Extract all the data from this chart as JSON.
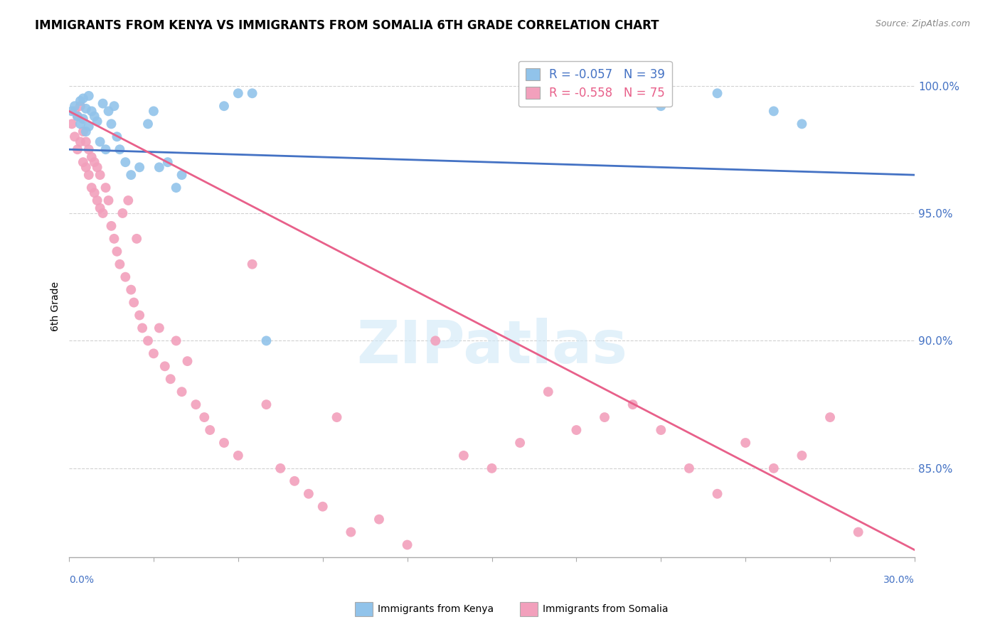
{
  "title": "IMMIGRANTS FROM KENYA VS IMMIGRANTS FROM SOMALIA 6TH GRADE CORRELATION CHART",
  "source": "Source: ZipAtlas.com",
  "ylabel": "6th Grade",
  "xlim": [
    0.0,
    0.3
  ],
  "ylim": [
    0.815,
    1.012
  ],
  "kenya_R": "-0.057",
  "kenya_N": "39",
  "somalia_R": "-0.558",
  "somalia_N": "75",
  "kenya_color": "#91C3EA",
  "somalia_color": "#F2A0BC",
  "kenya_line_color": "#4472C4",
  "somalia_line_color": "#E8608A",
  "watermark": "ZIPatlas",
  "background_color": "#FFFFFF",
  "ytick_positions": [
    1.0,
    0.95,
    0.9,
    0.85
  ],
  "ytick_labels": [
    "100.0%",
    "95.0%",
    "90.0%",
    "85.0%"
  ],
  "xtick_positions": [
    0.0,
    0.03,
    0.06,
    0.09,
    0.12,
    0.15,
    0.18,
    0.21,
    0.24,
    0.27,
    0.3
  ],
  "kenya_scatter_x": [
    0.001,
    0.002,
    0.003,
    0.004,
    0.004,
    0.005,
    0.005,
    0.006,
    0.006,
    0.007,
    0.007,
    0.008,
    0.009,
    0.01,
    0.011,
    0.012,
    0.013,
    0.014,
    0.015,
    0.016,
    0.017,
    0.018,
    0.02,
    0.022,
    0.025,
    0.028,
    0.03,
    0.032,
    0.035,
    0.038,
    0.04,
    0.055,
    0.06,
    0.065,
    0.07,
    0.21,
    0.23,
    0.25,
    0.26
  ],
  "kenya_scatter_y": [
    0.99,
    0.992,
    0.988,
    0.985,
    0.994,
    0.987,
    0.995,
    0.982,
    0.991,
    0.996,
    0.984,
    0.99,
    0.988,
    0.986,
    0.978,
    0.993,
    0.975,
    0.99,
    0.985,
    0.992,
    0.98,
    0.975,
    0.97,
    0.965,
    0.968,
    0.985,
    0.99,
    0.968,
    0.97,
    0.96,
    0.965,
    0.992,
    0.997,
    0.997,
    0.9,
    0.992,
    0.997,
    0.99,
    0.985
  ],
  "somalia_scatter_x": [
    0.001,
    0.002,
    0.002,
    0.003,
    0.003,
    0.004,
    0.004,
    0.005,
    0.005,
    0.006,
    0.006,
    0.007,
    0.007,
    0.008,
    0.008,
    0.009,
    0.009,
    0.01,
    0.01,
    0.011,
    0.011,
    0.012,
    0.013,
    0.014,
    0.015,
    0.016,
    0.017,
    0.018,
    0.019,
    0.02,
    0.021,
    0.022,
    0.023,
    0.024,
    0.025,
    0.026,
    0.028,
    0.03,
    0.032,
    0.034,
    0.036,
    0.038,
    0.04,
    0.042,
    0.045,
    0.048,
    0.05,
    0.055,
    0.06,
    0.065,
    0.07,
    0.075,
    0.08,
    0.085,
    0.09,
    0.095,
    0.1,
    0.11,
    0.12,
    0.13,
    0.14,
    0.15,
    0.16,
    0.17,
    0.18,
    0.19,
    0.2,
    0.21,
    0.22,
    0.23,
    0.24,
    0.25,
    0.26,
    0.27,
    0.28
  ],
  "somalia_scatter_y": [
    0.985,
    0.99,
    0.98,
    0.975,
    0.988,
    0.978,
    0.992,
    0.97,
    0.982,
    0.968,
    0.978,
    0.965,
    0.975,
    0.96,
    0.972,
    0.958,
    0.97,
    0.955,
    0.968,
    0.952,
    0.965,
    0.95,
    0.96,
    0.955,
    0.945,
    0.94,
    0.935,
    0.93,
    0.95,
    0.925,
    0.955,
    0.92,
    0.915,
    0.94,
    0.91,
    0.905,
    0.9,
    0.895,
    0.905,
    0.89,
    0.885,
    0.9,
    0.88,
    0.892,
    0.875,
    0.87,
    0.865,
    0.86,
    0.855,
    0.93,
    0.875,
    0.85,
    0.845,
    0.84,
    0.835,
    0.87,
    0.825,
    0.83,
    0.82,
    0.9,
    0.855,
    0.85,
    0.86,
    0.88,
    0.865,
    0.87,
    0.875,
    0.865,
    0.85,
    0.84,
    0.86,
    0.85,
    0.855,
    0.87,
    0.825
  ],
  "kenya_trendline_x": [
    0.0,
    0.3
  ],
  "kenya_trendline_y": [
    0.975,
    0.965
  ],
  "somalia_trendline_x": [
    0.0,
    0.3
  ],
  "somalia_trendline_y": [
    0.99,
    0.818
  ]
}
